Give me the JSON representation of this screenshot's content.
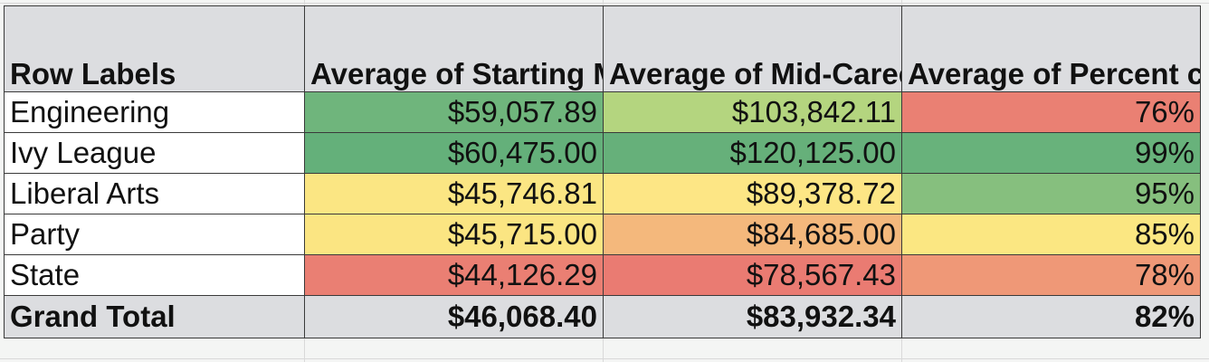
{
  "pivot": {
    "headers": {
      "row_labels": "Row Labels",
      "col1": "Average of Starting Median",
      "col2": "Average of Mid-Career Median",
      "col3": "Average of Percent change"
    },
    "rows": [
      {
        "label": "Engineering",
        "starting": "$59,057.89",
        "midcareer": "$103,842.11",
        "pct": "76%",
        "colors": {
          "starting": "#6fb57c",
          "midcareer": "#b4d57f",
          "pct": "#ea8073"
        }
      },
      {
        "label": "Ivy League",
        "starting": "$60,475.00",
        "midcareer": "$120,125.00",
        "pct": "99%",
        "colors": {
          "starting": "#64b07a",
          "midcareer": "#66b07a",
          "pct": "#68b27b"
        }
      },
      {
        "label": "Liberal Arts",
        "starting": "$45,746.81",
        "midcareer": "$89,378.72",
        "pct": "95%",
        "colors": {
          "starting": "#fbe683",
          "midcareer": "#fde685",
          "pct": "#86bf7e"
        }
      },
      {
        "label": "Party",
        "starting": "$45,715.00",
        "midcareer": "$84,685.00",
        "pct": "85%",
        "colors": {
          "starting": "#fbe582",
          "midcareer": "#f4b87c",
          "pct": "#fbe782"
        }
      },
      {
        "label": "State",
        "starting": "$44,126.29",
        "midcareer": "$78,567.43",
        "pct": "78%",
        "colors": {
          "starting": "#ea7f73",
          "midcareer": "#ea7b72",
          "pct": "#ef9877"
        }
      }
    ],
    "total": {
      "label": "Grand Total",
      "starting": "$46,068.40",
      "midcareer": "$83,932.34",
      "pct": "82%"
    }
  }
}
